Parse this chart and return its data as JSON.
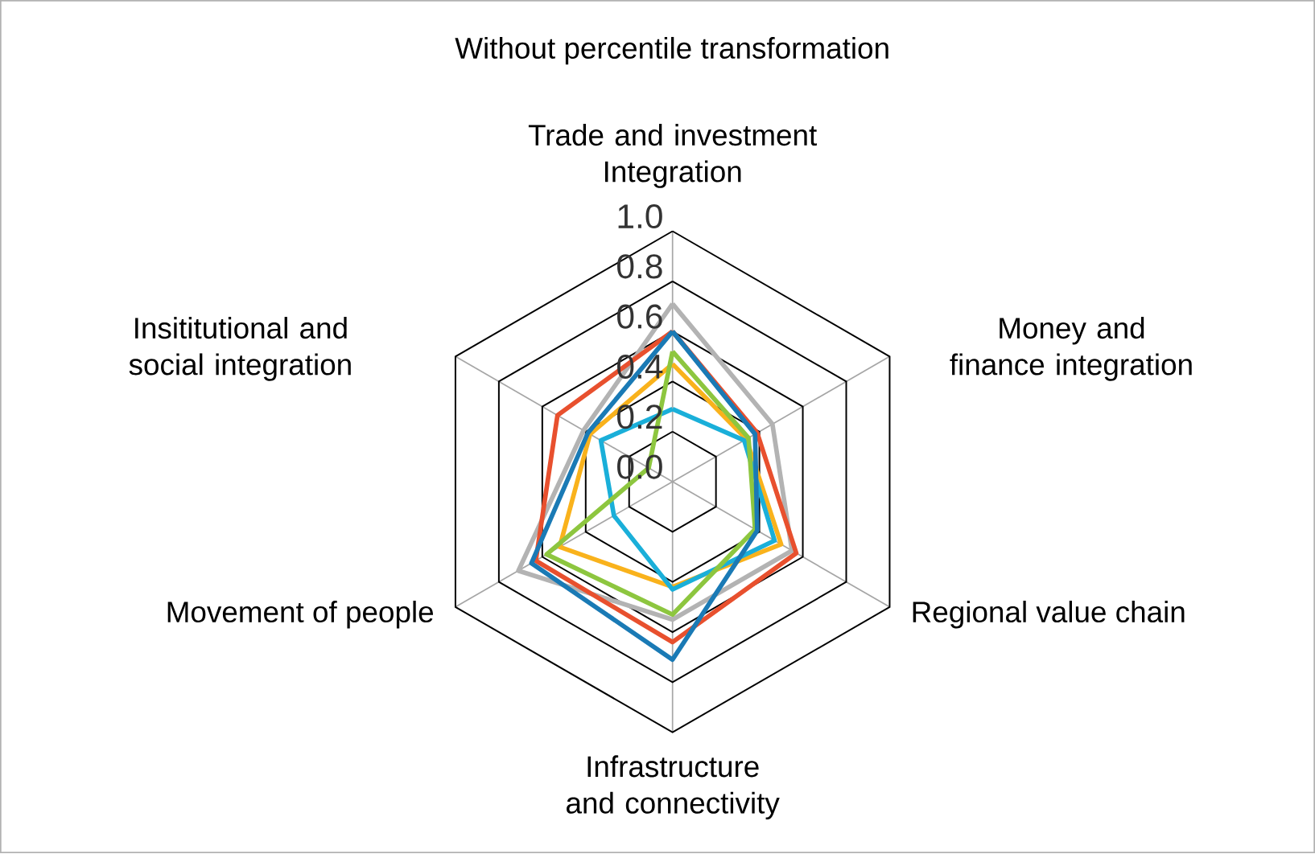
{
  "chart_data": {
    "type": "radar",
    "title": "Without percentile transformation",
    "categories": [
      "Trade and investment Integration",
      "Money and finance integration",
      "Regional value chain",
      "Infrastructure and connectivity",
      "Movement of people",
      "Insititutional and social integration"
    ],
    "ylim": [
      0,
      1
    ],
    "yticks": [
      {
        "value": 0,
        "label": "0.0"
      },
      0.2,
      0.4,
      0.6,
      0.8,
      {
        "value": 1,
        "label": "1.0"
      }
    ],
    "grid": true,
    "series": [
      {
        "color": "#b3b3b3",
        "values": [
          0.71,
          0.46,
          0.55,
          0.55,
          0.71,
          0.41
        ]
      },
      {
        "color": "#f9b21c",
        "values": [
          0.47,
          0.34,
          0.5,
          0.42,
          0.52,
          0.38
        ]
      },
      {
        "color": "#1aafd9",
        "values": [
          0.29,
          0.33,
          0.47,
          0.43,
          0.27,
          0.33
        ]
      },
      {
        "color": "#8dc63f",
        "values": [
          0.52,
          0.35,
          0.38,
          0.53,
          0.58,
          0.11
        ]
      },
      {
        "color": "#e8502e",
        "values": [
          0.6,
          0.39,
          0.57,
          0.64,
          0.63,
          0.53
        ]
      },
      {
        "color": "#1a7ab5",
        "values": [
          0.6,
          0.38,
          0.39,
          0.71,
          0.65,
          0.39
        ]
      }
    ]
  }
}
